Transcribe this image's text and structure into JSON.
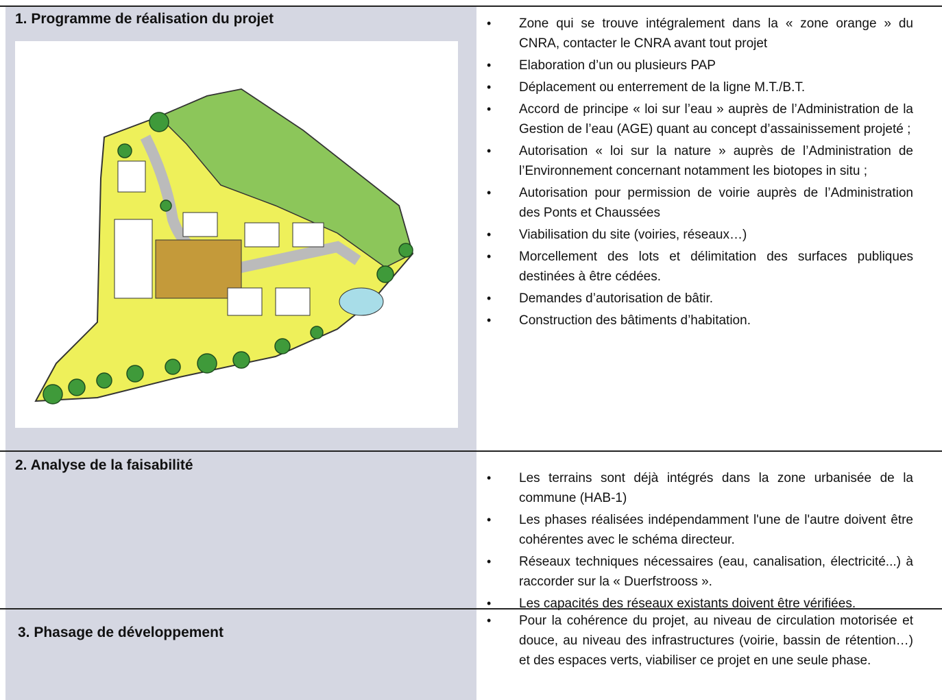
{
  "sections": [
    {
      "heading": "1. Programme de réalisation du projet",
      "items": [
        "Zone qui se trouve intégralement dans la « zone orange » du CNRA, contacter le CNRA avant tout projet",
        "Elaboration d’un ou plusieurs PAP",
        "Déplacement ou enterrement de la ligne M.T./B.T.",
        "Accord de principe « loi sur l’eau » auprès de l’Administration de la Gestion de l’eau (AGE) quant au concept d’assainissement projeté ;",
        "Autorisation « loi sur la nature » auprès de l’Administration de l’Environnement concernant notamment les biotopes in situ ;",
        "Autorisation pour permission de voirie auprès de l’Administration des Ponts et Chaussées",
        "Viabilisation du site (voiries, réseaux…)",
        "Morcellement des lots et délimitation des surfaces publiques destinées à être cédées.",
        "Demandes d’autorisation de bâtir.",
        "Construction des bâtiments d’habitation."
      ]
    },
    {
      "heading": "2. Analyse de la faisabilité",
      "items": [
        "Les terrains sont déjà intégrés dans la zone urbanisée de la commune (HAB-1)",
        "Les phases réalisées indépendamment l'une de l'autre doivent être cohérentes avec le schéma directeur.",
        "Réseaux techniques nécessaires (eau, canalisation, électricité...) à raccorder sur la « Duerfstrooss ».",
        "Les capacités des réseaux existants doivent être vérifiées."
      ]
    },
    {
      "heading": "3. Phasage de développement",
      "items": [
        "Pour la cohérence du projet, au niveau de circulation motorisée et douce, au niveau des infrastructures (voirie, bassin de rétention…) et des espaces verts, viabiliser ce projet en une seule phase."
      ]
    }
  ]
}
